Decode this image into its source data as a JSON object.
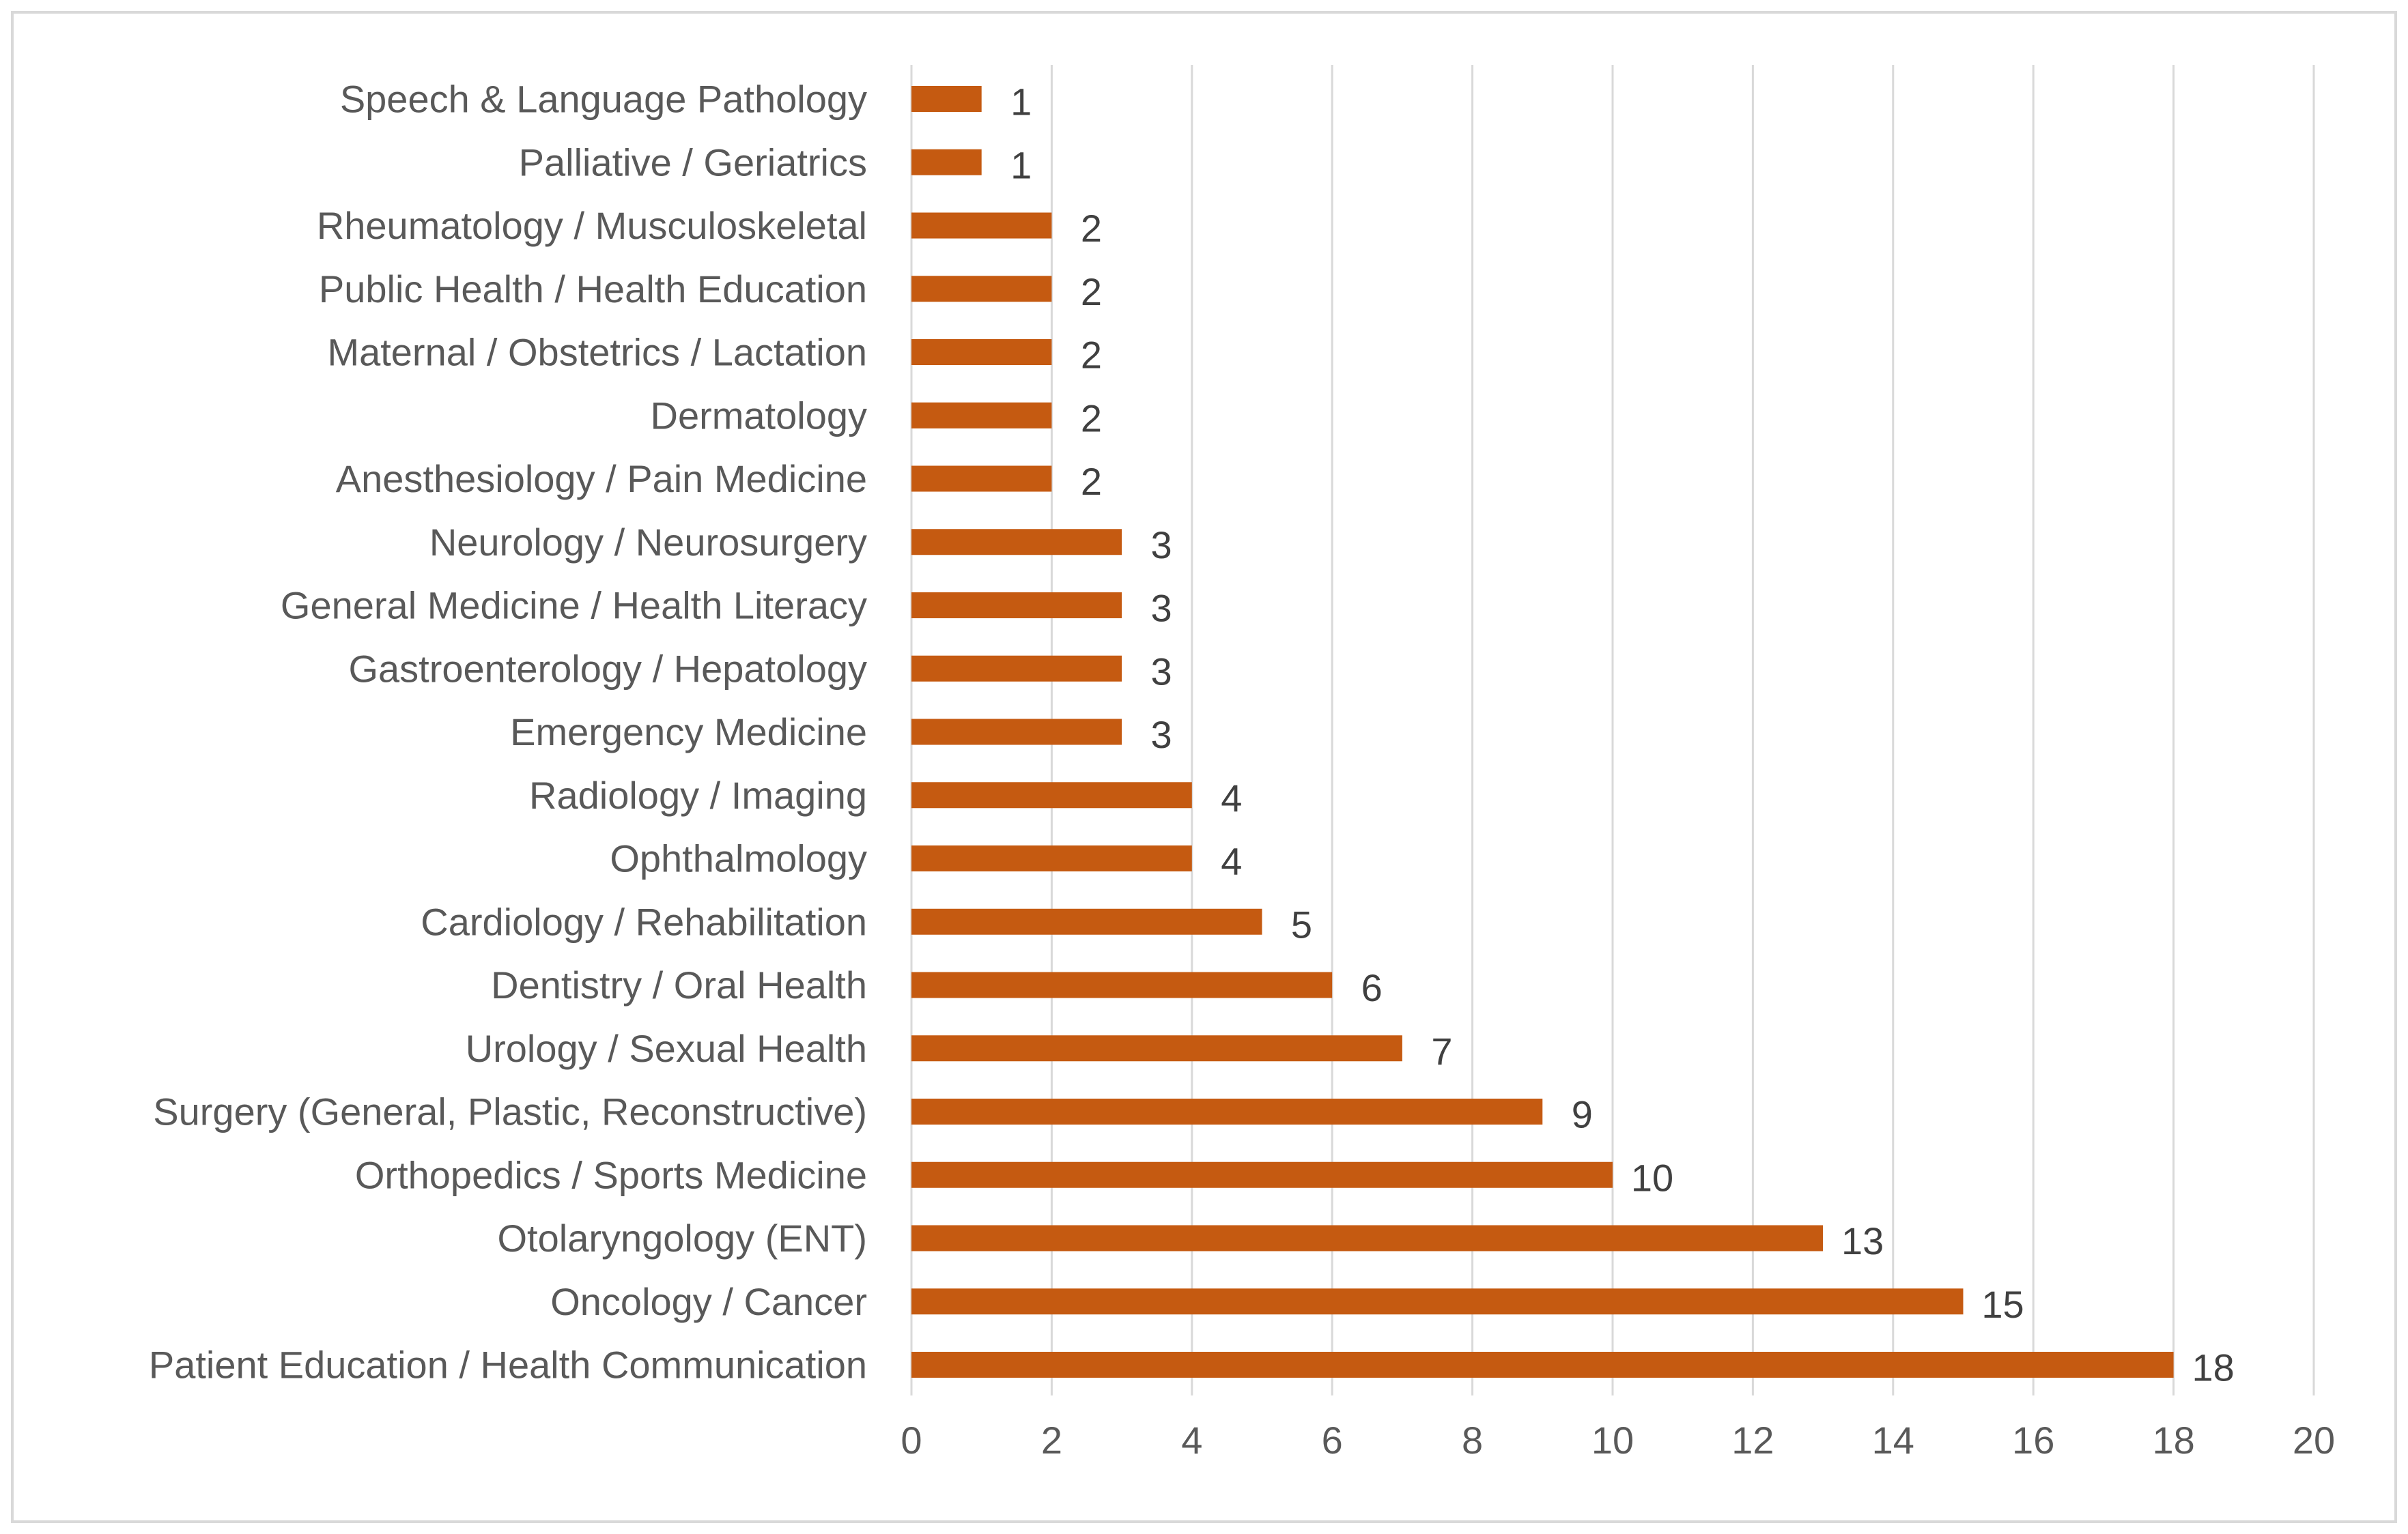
{
  "chart_data": {
    "type": "bar",
    "orientation": "horizontal",
    "categories": [
      "Speech & Language Pathology",
      "Palliative / Geriatrics",
      "Rheumatology / Musculoskeletal",
      "Public Health / Health Education",
      "Maternal / Obstetrics / Lactation",
      "Dermatology",
      "Anesthesiology / Pain Medicine",
      "Neurology / Neurosurgery",
      "General Medicine / Health Literacy",
      "Gastroenterology / Hepatology",
      "Emergency Medicine",
      "Radiology / Imaging",
      "Ophthalmology",
      "Cardiology / Rehabilitation",
      "Dentistry / Oral Health",
      "Urology / Sexual Health",
      "Surgery (General, Plastic, Reconstructive)",
      "Orthopedics / Sports Medicine",
      "Otolaryngology (ENT)",
      "Oncology / Cancer",
      "Patient Education / Health Communication"
    ],
    "values": [
      1,
      1,
      2,
      2,
      2,
      2,
      2,
      3,
      3,
      3,
      3,
      4,
      4,
      5,
      6,
      7,
      9,
      10,
      13,
      15,
      18
    ],
    "data_labels": [
      "1",
      "1",
      "2",
      "2",
      "2",
      "2",
      "2",
      "3",
      "3",
      "3",
      "3",
      "4",
      "4",
      "5",
      "6",
      "7",
      "9",
      "10",
      "13",
      "15",
      "18"
    ],
    "xlim": [
      0,
      20
    ],
    "x_ticks": [
      0,
      2,
      4,
      6,
      8,
      10,
      12,
      14,
      16,
      18,
      20
    ],
    "x_tick_labels": [
      "0",
      "2",
      "4",
      "6",
      "8",
      "10",
      "12",
      "14",
      "16",
      "18",
      "20"
    ],
    "title": "",
    "xlabel": "",
    "ylabel": "",
    "grid": "vertical",
    "legend": "none",
    "colors": {
      "bar": "#C55A11",
      "grid": "#d9d9d9",
      "axis_text": "#595959",
      "data_label_text": "#404040",
      "border": "#d9d9d9"
    }
  }
}
